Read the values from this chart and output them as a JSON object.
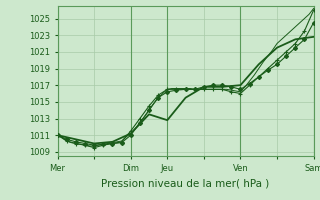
{
  "background_color": "#cde8cd",
  "plot_bg_color": "#cde8cd",
  "grid_color": "#a8cba8",
  "line_color": "#1a5c1a",
  "marker_color": "#1a5c1a",
  "ylim": [
    1008.5,
    1026.5
  ],
  "yticks": [
    1009,
    1011,
    1013,
    1015,
    1017,
    1019,
    1021,
    1023,
    1025
  ],
  "xlabel": "Pression niveau de la mer( hPa )",
  "xlabel_fontsize": 7.5,
  "tick_fontsize": 6.0,
  "day_labels": [
    "Mer",
    "",
    "Dim",
    "Jeu",
    "",
    "Ven",
    "",
    "Sam"
  ],
  "day_positions": [
    0,
    24,
    48,
    72,
    96,
    120,
    144,
    168
  ],
  "vline_positions": [
    0,
    48,
    72,
    120,
    168
  ],
  "series1_x": [
    0,
    6,
    12,
    18,
    24,
    30,
    36,
    42,
    48,
    54,
    60,
    66,
    72,
    78,
    84,
    90,
    96,
    102,
    108,
    114,
    120,
    126,
    132,
    138,
    144,
    150,
    156,
    162,
    168
  ],
  "series1_y": [
    1011.0,
    1010.3,
    1010.0,
    1009.8,
    1009.5,
    1009.8,
    1010.0,
    1010.2,
    1011.5,
    1013.0,
    1014.5,
    1015.8,
    1016.5,
    1016.5,
    1016.5,
    1016.5,
    1016.5,
    1016.5,
    1016.5,
    1016.2,
    1016.0,
    1017.0,
    1018.0,
    1019.0,
    1020.0,
    1021.0,
    1022.0,
    1023.5,
    1026.0
  ],
  "series2_x": [
    0,
    3,
    6,
    9,
    12,
    15,
    18,
    21,
    24,
    27,
    30,
    33,
    36,
    39,
    42,
    45,
    48,
    51,
    54,
    57,
    60,
    63,
    66,
    69,
    72,
    75,
    78,
    81,
    84,
    87,
    90,
    93,
    96,
    99,
    102,
    105,
    108,
    111,
    114,
    117,
    120,
    123,
    126,
    129,
    132,
    135,
    138,
    141,
    144,
    147,
    150,
    153,
    156,
    159,
    162,
    165,
    168
  ],
  "series2_y": [
    1011.0,
    1010.7,
    1010.3,
    1010.1,
    1010.0,
    1009.9,
    1009.8,
    1009.7,
    1009.7,
    1009.8,
    1009.9,
    1010.0,
    1010.1,
    1010.2,
    1010.3,
    1010.8,
    1011.2,
    1011.8,
    1012.5,
    1013.2,
    1014.0,
    1014.8,
    1015.5,
    1016.0,
    1016.5,
    1016.6,
    1016.6,
    1016.6,
    1016.6,
    1016.6,
    1016.5,
    1016.5,
    1016.5,
    1016.5,
    1016.5,
    1016.5,
    1016.5,
    1016.5,
    1016.4,
    1016.3,
    1016.2,
    1016.8,
    1017.5,
    1018.2,
    1019.0,
    1019.8,
    1020.5,
    1021.2,
    1022.0,
    1022.5,
    1023.0,
    1023.5,
    1024.0,
    1024.5,
    1025.0,
    1025.5,
    1026.2
  ],
  "series3_x": [
    0,
    6,
    12,
    18,
    24,
    30,
    36,
    42,
    48,
    54,
    60,
    66,
    72,
    78,
    84,
    90,
    96,
    102,
    108,
    114,
    120,
    126,
    132,
    138,
    144,
    150,
    156,
    162,
    168
  ],
  "series3_y": [
    1011.0,
    1010.5,
    1010.2,
    1010.0,
    1009.8,
    1009.9,
    1010.0,
    1010.1,
    1011.0,
    1012.5,
    1014.0,
    1015.5,
    1016.2,
    1016.4,
    1016.5,
    1016.5,
    1016.8,
    1017.0,
    1017.0,
    1016.8,
    1016.5,
    1017.2,
    1018.0,
    1018.8,
    1019.5,
    1020.5,
    1021.5,
    1022.5,
    1024.5
  ],
  "series4_x": [
    0,
    12,
    24,
    36,
    48,
    60,
    72,
    84,
    96,
    108,
    120,
    132,
    144,
    156,
    168
  ],
  "series4_y": [
    1011.0,
    1010.5,
    1010.0,
    1010.2,
    1011.2,
    1013.5,
    1012.8,
    1015.5,
    1016.8,
    1016.8,
    1017.0,
    1019.5,
    1021.5,
    1022.5,
    1022.8
  ]
}
